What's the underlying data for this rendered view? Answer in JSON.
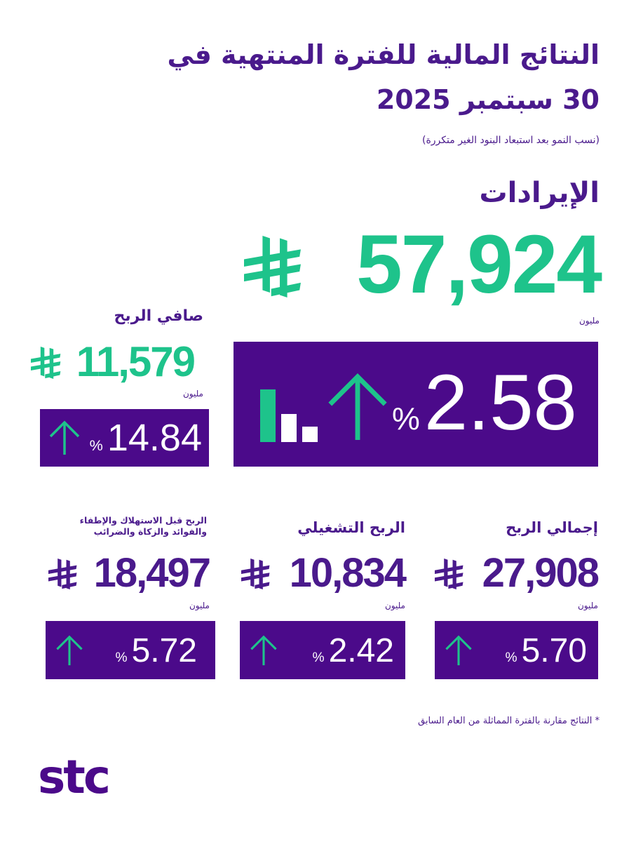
{
  "header": {
    "title_line1": "النتائج المالية للفترة المنتهية في",
    "title_line2": "30 سبتمبر 2025",
    "subtitle": "(نسب النمو بعد استبعاد البنود الغير متكررة)"
  },
  "revenue": {
    "label": "الإيرادات",
    "value": "57,924",
    "unit": "مليون",
    "growth": "2.58",
    "percent_sign": "%",
    "currency_icon": "saudi-riyal-icon",
    "trend_icon": "arrow-up-icon"
  },
  "net_profit": {
    "label": "صافي الربح",
    "value": "11,579",
    "unit": "مليون",
    "growth": "14.84",
    "percent_sign": "%"
  },
  "metrics": [
    {
      "label": "إجمالي الربح",
      "value": "27,908",
      "unit": "مليون",
      "growth": "5.70",
      "percent_sign": "%"
    },
    {
      "label": "الربح التشغيلي",
      "value": "10,834",
      "unit": "مليون",
      "growth": "2.42",
      "percent_sign": "%"
    },
    {
      "label": "الربح قبل الاستهلاك والإطفاء والفوائد والزكاة والضرائب",
      "value": "18,497",
      "unit": "مليون",
      "growth": "5.72",
      "percent_sign": "%"
    }
  ],
  "footnote": "*  النتائج مقارنة بالفترة المماثلة من العام السابق",
  "logo": "stc",
  "colors": {
    "purple": "#4b0a8a",
    "green": "#1ec38b",
    "text": "#4a1a8c"
  }
}
